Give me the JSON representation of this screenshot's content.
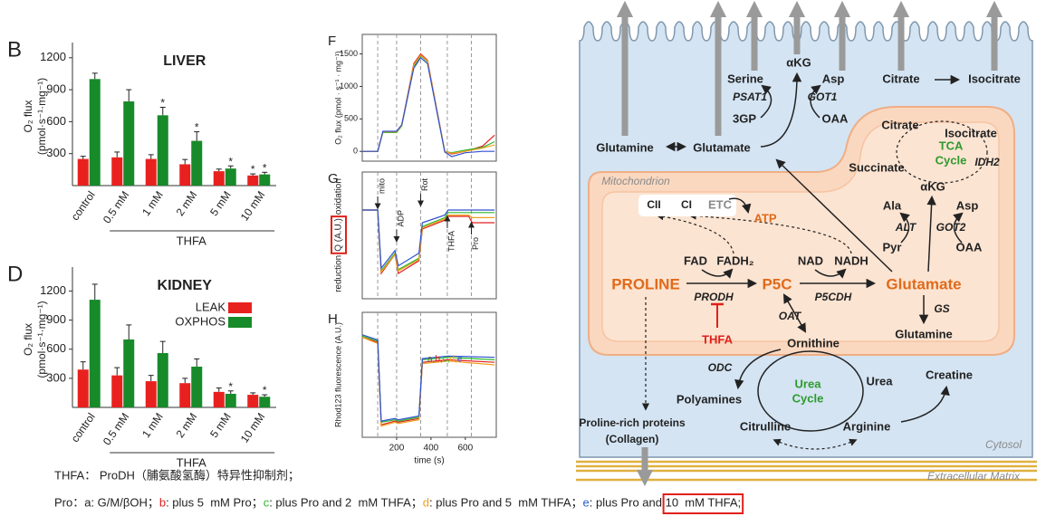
{
  "chart_data": [
    {
      "type": "bar",
      "panel": "B",
      "title": "LIVER",
      "ylabel": [
        "O₂ flux",
        "(pmol·s⁻¹·mg⁻¹)"
      ],
      "xlabel": "THFA",
      "categories": [
        "control",
        "0.5 mM",
        "1 mM",
        "2 mM",
        "5 mM",
        "10 mM"
      ],
      "ylim": [
        0,
        1300
      ],
      "yticks": [
        300,
        600,
        900,
        1200
      ],
      "series": [
        {
          "color": "#e8211f",
          "values": [
            250,
            265,
            250,
            200,
            135,
            95
          ],
          "errors": [
            25,
            50,
            40,
            45,
            20,
            15
          ]
        },
        {
          "color": "#178a2a",
          "values": [
            1000,
            790,
            660,
            420,
            160,
            105
          ],
          "errors": [
            55,
            110,
            75,
            85,
            25,
            20
          ]
        }
      ],
      "annotations": [
        {
          "text": "*",
          "category": 2,
          "series": 1
        },
        {
          "text": "*",
          "category": 3,
          "series": 1
        },
        {
          "text": "*",
          "category": 4,
          "series": 1
        },
        {
          "text": "*",
          "category": 5,
          "series": 0
        },
        {
          "text": "*",
          "category": 5,
          "series": 1
        }
      ]
    },
    {
      "type": "bar",
      "panel": "D",
      "title": "KIDNEY",
      "ylabel": [
        "O₂ flux",
        "(pmol·s⁻¹·mg⁻¹)"
      ],
      "xlabel": "THFA",
      "categories": [
        "control",
        "0.5 mM",
        "1 mM",
        "2 mM",
        "5 mM",
        "10 mM"
      ],
      "ylim": [
        0,
        1400
      ],
      "yticks": [
        300,
        600,
        900,
        1200
      ],
      "legend": "upper right",
      "series": [
        {
          "name": "LEAK",
          "color": "#e8211f",
          "values": [
            390,
            330,
            270,
            250,
            160,
            130
          ],
          "errors": [
            80,
            80,
            60,
            50,
            40,
            20
          ]
        },
        {
          "name": "OXPHOS",
          "color": "#178a2a",
          "values": [
            1110,
            700,
            560,
            420,
            140,
            110
          ],
          "errors": [
            160,
            150,
            120,
            80,
            30,
            20
          ]
        }
      ],
      "annotations": [
        {
          "text": "*",
          "category": 4,
          "series": 1
        },
        {
          "text": "*",
          "category": 5,
          "series": 1
        }
      ]
    },
    {
      "type": "line",
      "panel": "F",
      "ylabel": "O₂ flux (pmol · s⁻¹ · mg⁻¹)",
      "xlim": [
        0,
        780
      ],
      "ylim": [
        -150,
        1800
      ],
      "yticks": [
        0,
        500,
        1000,
        1500
      ],
      "x": [
        0,
        90,
        120,
        200,
        230,
        300,
        340,
        380,
        480,
        520,
        600,
        700,
        770
      ],
      "series": [
        {
          "color": "#e02020",
          "values": [
            0,
            0,
            300,
            300,
            400,
            1350,
            1500,
            1400,
            0,
            -40,
            0,
            80,
            250
          ]
        },
        {
          "color": "#2db82d",
          "values": [
            0,
            0,
            290,
            290,
            390,
            1300,
            1470,
            1380,
            0,
            -20,
            20,
            60,
            150
          ]
        },
        {
          "color": "#f0a020",
          "values": [
            0,
            0,
            300,
            300,
            400,
            1330,
            1480,
            1390,
            0,
            -30,
            0,
            50,
            100
          ]
        },
        {
          "color": "#3050d0",
          "values": [
            0,
            0,
            310,
            310,
            410,
            1280,
            1440,
            1350,
            -10,
            -80,
            -20,
            0,
            0
          ]
        }
      ]
    },
    {
      "type": "line",
      "panel": "G",
      "ylabel": [
        "reduction",
        "Q (A.U.)",
        "oxidation"
      ],
      "xlim": [
        0,
        780
      ],
      "ylim": [
        0,
        10
      ],
      "events": [
        {
          "label": "mito",
          "x": 90
        },
        {
          "label": "ADP",
          "x": 200
        },
        {
          "label": "Rot",
          "x": 340
        },
        {
          "label": "THFA",
          "x": 495
        },
        {
          "label": "Pro",
          "x": 635
        }
      ],
      "x": [
        0,
        90,
        110,
        190,
        210,
        330,
        350,
        480,
        500,
        620,
        640,
        770
      ],
      "series": [
        {
          "color": "#e02020",
          "values": [
            7,
            7,
            2,
            3.5,
            2,
            3,
            5.5,
            6.2,
            6.5,
            6.5,
            6,
            6
          ]
        },
        {
          "color": "#2db82d",
          "values": [
            7,
            7,
            2.2,
            3.6,
            2.3,
            3.2,
            5.7,
            6.4,
            6.8,
            6.8,
            6.8,
            6.8
          ]
        },
        {
          "color": "#f0a020",
          "values": [
            7,
            7,
            2.1,
            3.5,
            2.2,
            3.1,
            5.6,
            6.3,
            6.6,
            6.6,
            6.4,
            6.4
          ]
        },
        {
          "color": "#3050d0",
          "values": [
            7,
            7,
            2.4,
            3.8,
            2.6,
            3.6,
            6,
            6.6,
            7,
            7,
            7,
            7
          ]
        }
      ]
    },
    {
      "type": "line",
      "panel": "H",
      "ylabel": "Rhod123 fluorescence (A.U.)",
      "xlabel": "time (s)",
      "xlim": [
        0,
        780
      ],
      "ylim": [
        0,
        10
      ],
      "xticks": [
        200,
        400,
        600
      ],
      "annotation_parts": [
        {
          "text": "a,",
          "color": "#556b2f"
        },
        {
          "text": "b,",
          "color": "#e02020"
        },
        {
          "text": "c,",
          "color": "#2db82d"
        },
        {
          "text": "d,",
          "color": "#f0a020"
        },
        {
          "text": "e",
          "color": "#3050d0"
        }
      ],
      "x": [
        0,
        90,
        110,
        190,
        210,
        330,
        350,
        500,
        770
      ],
      "series": [
        {
          "color": "#e02020",
          "values": [
            8,
            7.6,
            1,
            1.3,
            1.2,
            1.5,
            6,
            6.2,
            6
          ]
        },
        {
          "color": "#2db82d",
          "values": [
            8.1,
            7.7,
            1.2,
            1.4,
            1.3,
            1.6,
            6.2,
            6.4,
            6.2
          ]
        },
        {
          "color": "#f0a020",
          "values": [
            8,
            7.5,
            0.9,
            1.2,
            1.1,
            1.4,
            5.9,
            6.1,
            5.8
          ]
        },
        {
          "color": "#3050d0",
          "values": [
            8.2,
            7.8,
            1.3,
            1.5,
            1.4,
            1.7,
            6.3,
            6.5,
            6.4
          ]
        }
      ]
    }
  ],
  "diagram": {
    "labels": [
      "αKG",
      "Serine",
      "Asp",
      "PSAT1",
      "GOT1",
      "3GP",
      "OAA",
      "Citrate",
      "Isocitrate",
      "Glutamine",
      "Glutamate",
      "Citrate",
      "Isocitrate",
      "TCA",
      "Cycle",
      "Succinate",
      "IDH2",
      "αKG",
      "Mitochondrion",
      "CII",
      "CI",
      "ETC",
      "ATP",
      "Ala",
      "Asp",
      "ALT",
      "GOT2",
      "Pyr",
      "OAA",
      "FAD",
      "FADH₂",
      "NAD",
      "NADH",
      "PROLINE",
      "P5C",
      "Glutamate",
      "PRODH",
      "P5CDH",
      "THFA",
      "OAT",
      "GS",
      "Glutamine",
      "Ornithine",
      "ODC",
      "Urea",
      "Cycle",
      "Urea",
      "Creatine",
      "Polyamines",
      "Proline-rich proteins",
      "(Collagen)",
      "Citrulline",
      "Arginine",
      "Cytosol",
      "Extracellular Matrix"
    ]
  },
  "caption": {
    "line1": "THFA： ProDH（脯氨酸氢酶）特异性抑制剂；",
    "line2": [
      {
        "text": "Pro：a: G/M/βOH；"
      },
      {
        "text": "b",
        "color": "#e02020"
      },
      {
        "text": ": plus 5  mM Pro；"
      },
      {
        "text": "c",
        "color": "#2db82d"
      },
      {
        "text": ": plus Pro and 2  mM THFA；"
      },
      {
        "text": "d",
        "color": "#f0a020"
      },
      {
        "text": ": plus Pro and 5  mM THFA；"
      },
      {
        "text": "e",
        "color": "#2a5fd0"
      },
      {
        "text": ": plus Pro and "
      },
      {
        "text": "10  mM THFA;",
        "boxed": true
      }
    ]
  }
}
